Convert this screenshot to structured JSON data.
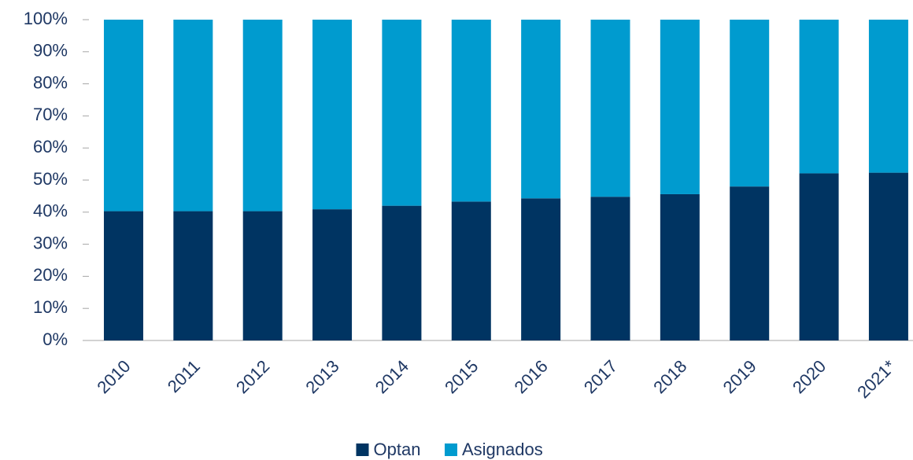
{
  "chart_data": {
    "type": "bar",
    "stacked": true,
    "categories": [
      "2010",
      "2011",
      "2012",
      "2013",
      "2014",
      "2015",
      "2016",
      "2017",
      "2018",
      "2019",
      "2020",
      "2021*"
    ],
    "series": [
      {
        "name": "Optan",
        "color": "#003462",
        "values": [
          40.3,
          40.3,
          40.3,
          40.9,
          42.0,
          43.3,
          44.3,
          44.8,
          45.6,
          48.0,
          52.1,
          52.3
        ]
      },
      {
        "name": "Asignados",
        "color": "#009bcf",
        "values": [
          59.7,
          59.7,
          59.7,
          59.1,
          58.0,
          56.7,
          55.7,
          55.2,
          54.4,
          52.0,
          47.9,
          47.7
        ]
      }
    ],
    "ylim": [
      0,
      100
    ],
    "yticks": [
      {
        "value": 0,
        "label": "0%"
      },
      {
        "value": 10,
        "label": "10%"
      },
      {
        "value": 20,
        "label": "20%"
      },
      {
        "value": 30,
        "label": "30%"
      },
      {
        "value": 40,
        "label": "40%"
      },
      {
        "value": 50,
        "label": "50%"
      },
      {
        "value": 60,
        "label": "60%"
      },
      {
        "value": 70,
        "label": "70%"
      },
      {
        "value": 80,
        "label": "80%"
      },
      {
        "value": 90,
        "label": "90%"
      },
      {
        "value": 100,
        "label": "100%"
      }
    ],
    "legend": "bottom"
  }
}
